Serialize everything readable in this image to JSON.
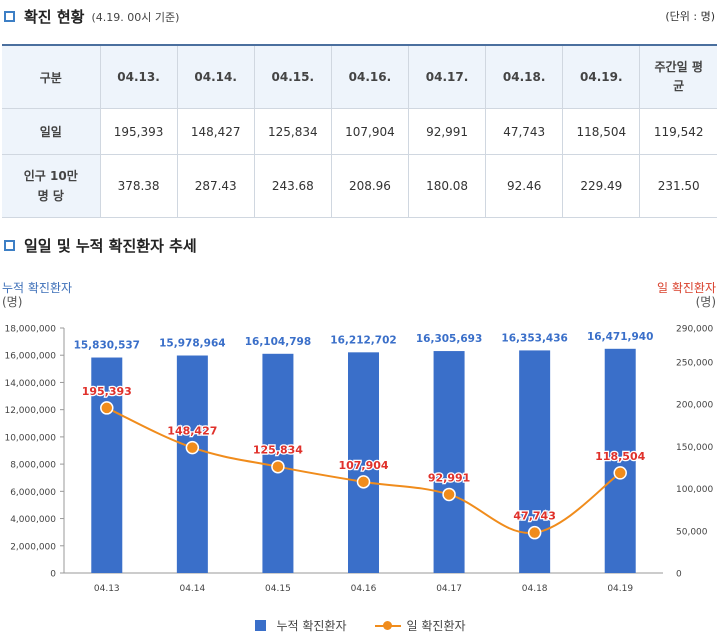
{
  "status": {
    "title": "확진 현황",
    "subtitle": "(4.19. 00시 기준)",
    "unit": "(단위 : 명)",
    "headers": [
      "구분",
      "04.13.",
      "04.14.",
      "04.15.",
      "04.16.",
      "04.17.",
      "04.18.",
      "04.19.",
      "주간일 평균"
    ],
    "rows": [
      {
        "label": "일일",
        "values": [
          "195,393",
          "148,427",
          "125,834",
          "107,904",
          "92,991",
          "47,743",
          "118,504",
          "119,542"
        ]
      },
      {
        "label": "인구 10만 명 당",
        "values": [
          "378.38",
          "287.43",
          "243.68",
          "208.96",
          "180.08",
          "92.46",
          "229.49",
          "231.50"
        ]
      }
    ]
  },
  "trend": {
    "title": "일일 및 누적 확진환자 추세"
  },
  "chart_data": {
    "type": "bar+line",
    "categories": [
      "04.13",
      "04.14",
      "04.15",
      "04.16",
      "04.17",
      "04.18",
      "04.19"
    ],
    "series": [
      {
        "name": "누적 확진환자",
        "type": "bar",
        "axis": "left",
        "color": "#3a6fc9",
        "values": [
          15830537,
          15978964,
          16104798,
          16212702,
          16305693,
          16353436,
          16471940
        ]
      },
      {
        "name": "일 확진환자",
        "type": "line",
        "axis": "right",
        "color": "#f08c1c",
        "values": [
          195393,
          148427,
          125834,
          107904,
          92991,
          47743,
          118504
        ]
      }
    ],
    "left_axis": {
      "label_line1": "누적 확진환자",
      "label_line2": "(명)",
      "range": [
        0,
        18000000
      ],
      "ticks": [
        0,
        2000000,
        4000000,
        6000000,
        8000000,
        10000000,
        12000000,
        14000000,
        16000000,
        18000000
      ]
    },
    "right_axis": {
      "label_line1": "일 확진환자",
      "label_line2": "(명)",
      "range": [
        0,
        290000
      ],
      "ticks": [
        0,
        50000,
        100000,
        150000,
        200000,
        250000,
        290000
      ]
    },
    "bar_label_color": "#3a6fc9",
    "line_label_color": "#e0312b"
  }
}
